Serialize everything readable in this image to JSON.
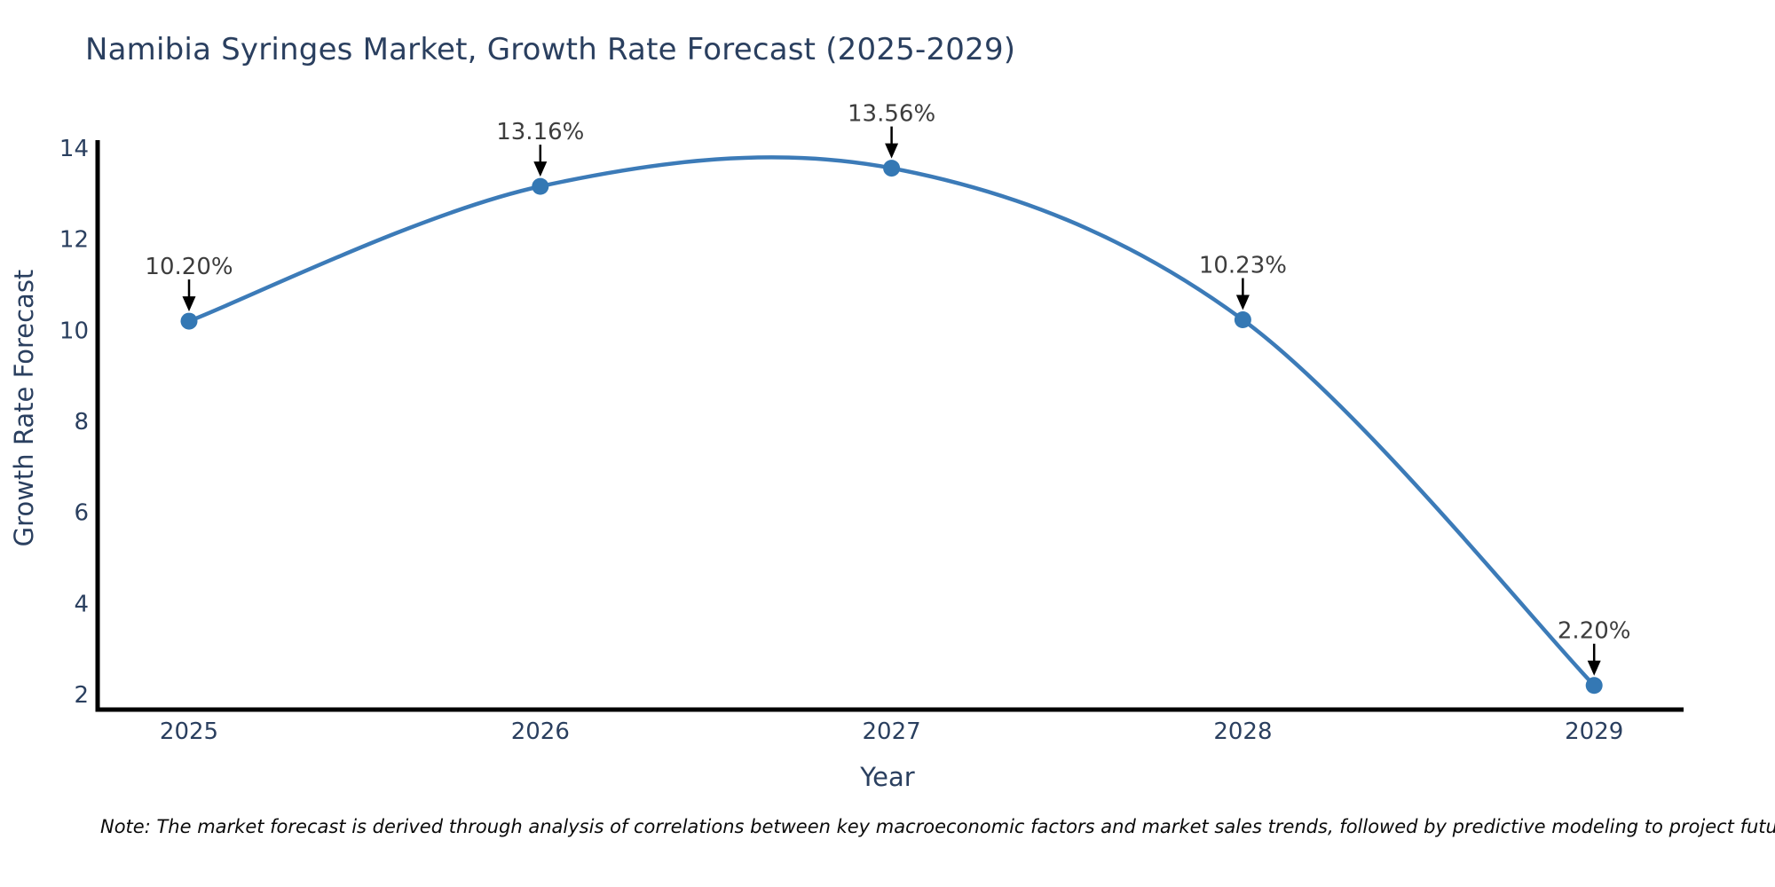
{
  "page": {
    "background": "#ffffff"
  },
  "chart_data": {
    "type": "line",
    "title": "Namibia Syringes Market, Growth Rate Forecast (2025-2029)",
    "xlabel": "Year",
    "ylabel": "Growth Rate Forecast",
    "categories": [
      "2025",
      "2026",
      "2027",
      "2028",
      "2029"
    ],
    "series": [
      {
        "name": "Growth Rate Forecast",
        "values": [
          10.2,
          13.16,
          13.56,
          10.23,
          2.2
        ]
      }
    ],
    "point_labels": [
      "10.20%",
      "13.16%",
      "13.56%",
      "10.23%",
      "2.20%"
    ],
    "yticks": [
      2,
      4,
      6,
      8,
      10,
      12,
      14
    ],
    "ylim": [
      1.67,
      14.15
    ],
    "xlim_padding_years": [
      0.26,
      0.26
    ],
    "grid": false,
    "legend_position": "none",
    "line_shape": "spline",
    "annotation_arrows": true,
    "colors": {
      "line": "#3c7bb8",
      "marker": "#3478b4",
      "axis_line": "#000000",
      "axis_text": "#2a3f5f",
      "annotation_text": "#3d3d3d",
      "arrow": "#000000"
    }
  },
  "footnote": "Note: The market forecast is derived through analysis of correlations between key macroeconomic factors and market sales trends, followed by predictive modeling to project future sales"
}
